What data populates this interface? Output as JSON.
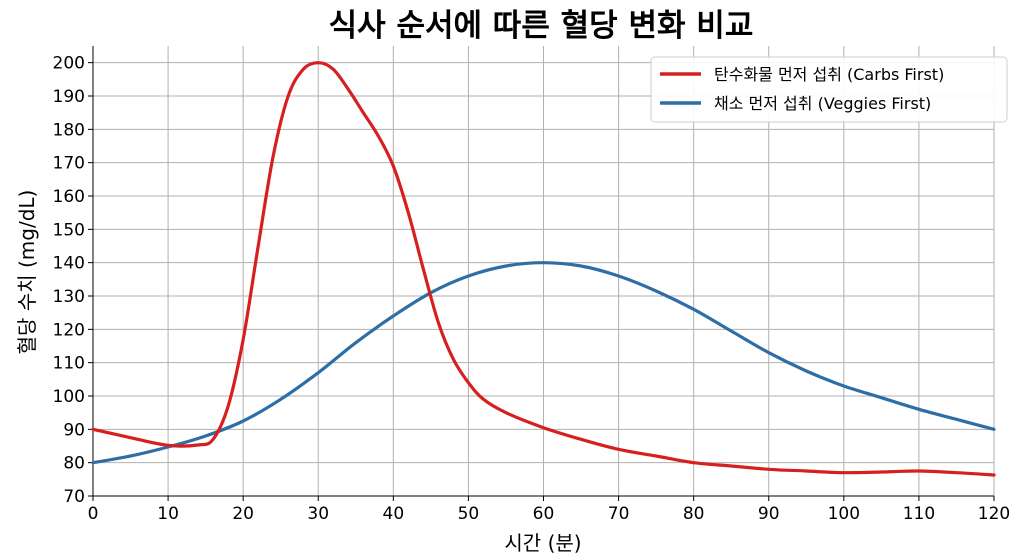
{
  "chart_data": {
    "type": "line",
    "title": "식사 순서에 따른 혈당 변화 비교",
    "xlabel": "시간 (분)",
    "ylabel": "혈당 수치 (mg/dL)",
    "xlim": [
      0,
      120
    ],
    "ylim": [
      70,
      205
    ],
    "xticks": [
      0,
      10,
      20,
      30,
      40,
      50,
      60,
      70,
      80,
      90,
      100,
      110,
      120
    ],
    "yticks": [
      70,
      80,
      90,
      100,
      110,
      120,
      130,
      140,
      150,
      160,
      170,
      180,
      190,
      200
    ],
    "grid": true,
    "legend_position": "top-right",
    "series": [
      {
        "name": "탄수화물 먼저 섭취 (Carbs First)",
        "color": "#d62020",
        "x": [
          0,
          5,
          10,
          14,
          16,
          18,
          20,
          22,
          24,
          26,
          28,
          30,
          32,
          34,
          36,
          38,
          40,
          42,
          44,
          46,
          48,
          50,
          52,
          55,
          60,
          65,
          70,
          75,
          80,
          85,
          90,
          95,
          100,
          105,
          110,
          115,
          120
        ],
        "y": [
          90,
          87.5,
          85.2,
          85.3,
          87,
          97,
          117,
          145,
          172,
          190,
          198,
          200,
          198,
          192,
          185,
          178,
          169,
          155,
          138,
          122,
          111,
          104,
          99,
          95,
          90.5,
          87,
          84,
          82,
          80,
          79,
          78,
          77.5,
          77,
          77.2,
          77.5,
          77,
          76.3
        ]
      },
      {
        "name": "채소 먼저 섭취 (Veggies First)",
        "color": "#2e6ea6",
        "x": [
          0,
          5,
          10,
          15,
          20,
          25,
          30,
          35,
          40,
          45,
          50,
          55,
          60,
          65,
          70,
          75,
          80,
          85,
          90,
          95,
          100,
          105,
          110,
          115,
          120
        ],
        "y": [
          80,
          82,
          84.7,
          88,
          92.5,
          99,
          107,
          116,
          124,
          131,
          136,
          139,
          140,
          139,
          136,
          131.5,
          126,
          119.5,
          113,
          107.5,
          103,
          99.5,
          96,
          93,
          90
        ]
      }
    ]
  }
}
